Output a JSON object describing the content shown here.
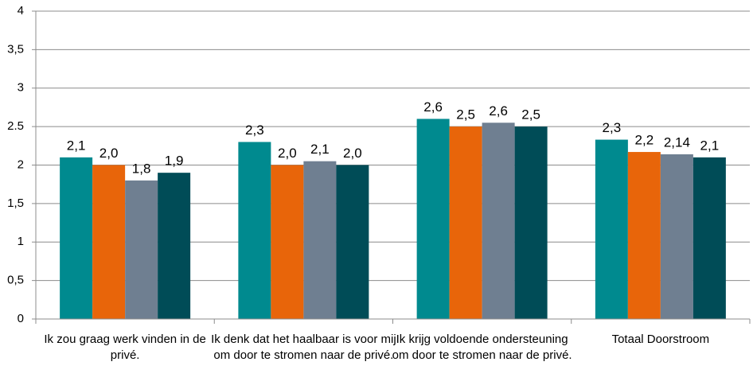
{
  "chart_data": {
    "type": "bar",
    "categories": [
      "Ik zou graag werk vinden in de privé.",
      "Ik denk dat het haalbaar is voor mij om door te stromen naar de privé.",
      "Ik krijg voldoende ondersteuning om door te stromen naar de privé.",
      "Totaal Doorstroom"
    ],
    "series": [
      {
        "color": "#008a8f",
        "values": [
          2.1,
          2.3,
          2.6,
          2.33
        ],
        "value_labels": [
          "2,1",
          "2,3",
          "2,6",
          "2,3"
        ]
      },
      {
        "color": "#e8650a",
        "values": [
          2.0,
          2.0,
          2.5,
          2.17
        ],
        "value_labels": [
          "2,0",
          "2,0",
          "2,5",
          "2,2"
        ]
      },
      {
        "color": "#6f7f91",
        "values": [
          1.8,
          2.05,
          2.55,
          2.14
        ],
        "value_labels": [
          "1,8",
          "2,1",
          "2,6",
          "2,14"
        ]
      },
      {
        "color": "#004c57",
        "values": [
          1.9,
          2.0,
          2.5,
          2.1
        ],
        "value_labels": [
          "1,9",
          "2,0",
          "2,5",
          "2,1"
        ]
      }
    ],
    "ylim": [
      0,
      4
    ],
    "yticks": [
      0,
      {
        "value": 0.5,
        "label": "0,5"
      },
      1,
      {
        "value": 1.5,
        "label": "1,5"
      },
      2,
      2.5,
      3,
      {
        "value": 3.5,
        "label": "3,5"
      },
      4
    ],
    "grid": true
  }
}
